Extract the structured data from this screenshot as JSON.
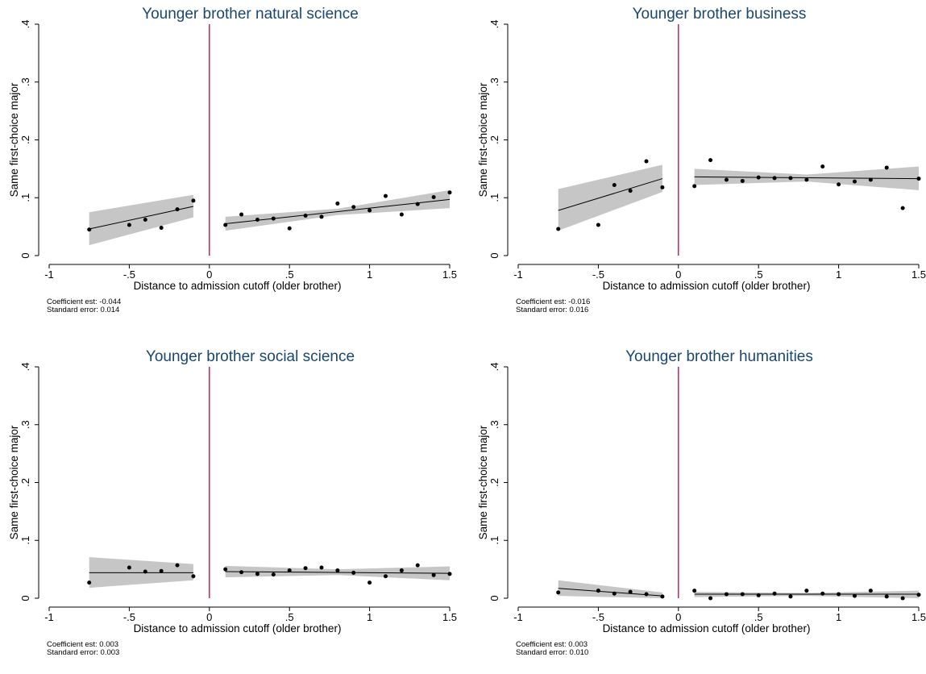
{
  "chart_data": [
    {
      "type": "scatter",
      "title": "Younger brother natural science",
      "xlabel": "Distance to admission cutoff (older brother)",
      "ylabel": "Same first-choice major",
      "xlim": [
        -1,
        1.5
      ],
      "ylim": [
        0,
        0.4
      ],
      "x_ticks": [
        -1,
        -0.5,
        0,
        0.5,
        1,
        1.5
      ],
      "x_tick_labels": [
        "-1",
        "-.5",
        "0",
        ".5",
        "1",
        "1.5"
      ],
      "y_ticks": [
        0,
        0.1,
        0.2,
        0.3,
        0.4
      ],
      "y_tick_labels": [
        "0",
        ".1",
        ".2",
        ".3",
        ".4"
      ],
      "cutoff": 0,
      "points": [
        [
          -0.75,
          0.045
        ],
        [
          -0.5,
          0.053
        ],
        [
          -0.4,
          0.062
        ],
        [
          -0.3,
          0.048
        ],
        [
          -0.2,
          0.08
        ],
        [
          -0.1,
          0.095
        ],
        [
          0.1,
          0.053
        ],
        [
          0.2,
          0.071
        ],
        [
          0.3,
          0.062
        ],
        [
          0.4,
          0.064
        ],
        [
          0.5,
          0.047
        ],
        [
          0.6,
          0.069
        ],
        [
          0.7,
          0.067
        ],
        [
          0.8,
          0.09
        ],
        [
          0.9,
          0.084
        ],
        [
          1.0,
          0.078
        ],
        [
          1.1,
          0.103
        ],
        [
          1.2,
          0.071
        ],
        [
          1.3,
          0.089
        ],
        [
          1.4,
          0.101
        ],
        [
          1.5,
          0.109
        ]
      ],
      "fit_left": {
        "x": [
          -0.75,
          -0.1
        ],
        "y": [
          0.046,
          0.085
        ]
      },
      "ci_left": {
        "x": [
          -0.75,
          -0.1
        ],
        "lower": [
          0.018,
          0.066
        ],
        "upper": [
          0.075,
          0.105
        ]
      },
      "fit_right": {
        "x": [
          0.1,
          1.5
        ],
        "y": [
          0.055,
          0.097
        ]
      },
      "ci_right": {
        "x": [
          0.1,
          0.8,
          1.5
        ],
        "lower": [
          0.043,
          0.07,
          0.082
        ],
        "upper": [
          0.067,
          0.081,
          0.113
        ]
      },
      "notes": [
        "Coefficient est: -0.044",
        "Standard error: 0.014"
      ]
    },
    {
      "type": "scatter",
      "title": "Younger brother business",
      "xlabel": "Distance to admission cutoff (older brother)",
      "ylabel": "Same first-choice major",
      "xlim": [
        -1,
        1.5
      ],
      "ylim": [
        0,
        0.4
      ],
      "x_ticks": [
        -1,
        -0.5,
        0,
        0.5,
        1,
        1.5
      ],
      "x_tick_labels": [
        "-1",
        "-.5",
        "0",
        ".5",
        "1",
        "1.5"
      ],
      "y_ticks": [
        0,
        0.1,
        0.2,
        0.3,
        0.4
      ],
      "y_tick_labels": [
        "0",
        ".1",
        ".2",
        ".3",
        ".4"
      ],
      "cutoff": 0,
      "points": [
        [
          -0.75,
          0.046
        ],
        [
          -0.5,
          0.053
        ],
        [
          -0.4,
          0.122
        ],
        [
          -0.3,
          0.112
        ],
        [
          -0.2,
          0.163
        ],
        [
          -0.1,
          0.118
        ],
        [
          0.1,
          0.12
        ],
        [
          0.2,
          0.165
        ],
        [
          0.3,
          0.131
        ],
        [
          0.4,
          0.129
        ],
        [
          0.5,
          0.135
        ],
        [
          0.6,
          0.134
        ],
        [
          0.7,
          0.134
        ],
        [
          0.8,
          0.131
        ],
        [
          0.9,
          0.154
        ],
        [
          1.0,
          0.123
        ],
        [
          1.1,
          0.128
        ],
        [
          1.2,
          0.131
        ],
        [
          1.3,
          0.152
        ],
        [
          1.4,
          0.082
        ],
        [
          1.5,
          0.133
        ]
      ],
      "fit_left": {
        "x": [
          -0.75,
          -0.1
        ],
        "y": [
          0.078,
          0.133
        ]
      },
      "ci_left": {
        "x": [
          -0.75,
          -0.1
        ],
        "lower": [
          0.043,
          0.11
        ],
        "upper": [
          0.115,
          0.157
        ]
      },
      "fit_right": {
        "x": [
          0.1,
          1.5
        ],
        "y": [
          0.136,
          0.133
        ]
      },
      "ci_right": {
        "x": [
          0.1,
          0.8,
          1.5
        ],
        "lower": [
          0.122,
          0.128,
          0.113
        ],
        "upper": [
          0.15,
          0.14,
          0.154
        ]
      },
      "notes": [
        "Coefficient est: -0.016",
        "Standard error: 0.016"
      ]
    },
    {
      "type": "scatter",
      "title": "Younger brother social science",
      "xlabel": "Distance to admission cutoff (older brother)",
      "ylabel": "Same first-choice major",
      "xlim": [
        -1,
        1.5
      ],
      "ylim": [
        0,
        0.4
      ],
      "x_ticks": [
        -1,
        -0.5,
        0,
        0.5,
        1,
        1.5
      ],
      "x_tick_labels": [
        "-1",
        "-.5",
        "0",
        ".5",
        "1",
        "1.5"
      ],
      "y_ticks": [
        0,
        0.1,
        0.2,
        0.3,
        0.4
      ],
      "y_tick_labels": [
        "0",
        ".1",
        ".2",
        ".3",
        ".4"
      ],
      "cutoff": 0,
      "points": [
        [
          -0.75,
          0.027
        ],
        [
          -0.5,
          0.053
        ],
        [
          -0.4,
          0.046
        ],
        [
          -0.3,
          0.047
        ],
        [
          -0.2,
          0.057
        ],
        [
          -0.1,
          0.038
        ],
        [
          0.1,
          0.05
        ],
        [
          0.2,
          0.045
        ],
        [
          0.3,
          0.042
        ],
        [
          0.4,
          0.041
        ],
        [
          0.5,
          0.048
        ],
        [
          0.6,
          0.052
        ],
        [
          0.7,
          0.053
        ],
        [
          0.8,
          0.048
        ],
        [
          0.9,
          0.044
        ],
        [
          1.0,
          0.027
        ],
        [
          1.1,
          0.038
        ],
        [
          1.2,
          0.048
        ],
        [
          1.3,
          0.057
        ],
        [
          1.4,
          0.04
        ],
        [
          1.5,
          0.042
        ]
      ],
      "fit_left": {
        "x": [
          -0.75,
          -0.1
        ],
        "y": [
          0.044,
          0.044
        ]
      },
      "ci_left": {
        "x": [
          -0.75,
          -0.1
        ],
        "lower": [
          0.018,
          0.031
        ],
        "upper": [
          0.071,
          0.059
        ]
      },
      "fit_right": {
        "x": [
          0.1,
          1.5
        ],
        "y": [
          0.046,
          0.043
        ]
      },
      "ci_right": {
        "x": [
          0.1,
          0.8,
          1.5
        ],
        "lower": [
          0.036,
          0.04,
          0.031
        ],
        "upper": [
          0.056,
          0.05,
          0.055
        ]
      },
      "notes": [
        "Coefficient est: 0.003",
        "Standard error: 0.003"
      ]
    },
    {
      "type": "scatter",
      "title": "Younger brother humanities",
      "xlabel": "Distance to admission cutoff (older brother)",
      "ylabel": "Same first-choice major",
      "xlim": [
        -1,
        1.5
      ],
      "ylim": [
        0,
        0.4
      ],
      "x_ticks": [
        -1,
        -0.5,
        0,
        0.5,
        1,
        1.5
      ],
      "x_tick_labels": [
        "-1",
        "-.5",
        "0",
        ".5",
        "1",
        "1.5"
      ],
      "y_ticks": [
        0,
        0.1,
        0.2,
        0.3,
        0.4
      ],
      "y_tick_labels": [
        "0",
        ".1",
        ".2",
        ".3",
        ".4"
      ],
      "cutoff": 0,
      "points": [
        [
          -0.75,
          0.01
        ],
        [
          -0.5,
          0.013
        ],
        [
          -0.4,
          0.008
        ],
        [
          -0.3,
          0.011
        ],
        [
          -0.2,
          0.007
        ],
        [
          -0.1,
          0.003
        ],
        [
          0.1,
          0.013
        ],
        [
          0.2,
          0.0
        ],
        [
          0.3,
          0.007
        ],
        [
          0.4,
          0.007
        ],
        [
          0.5,
          0.005
        ],
        [
          0.6,
          0.008
        ],
        [
          0.7,
          0.003
        ],
        [
          0.8,
          0.013
        ],
        [
          0.9,
          0.008
        ],
        [
          1.0,
          0.007
        ],
        [
          1.1,
          0.004
        ],
        [
          1.2,
          0.013
        ],
        [
          1.3,
          0.003
        ],
        [
          1.4,
          0.0
        ],
        [
          1.5,
          0.006
        ]
      ],
      "fit_left": {
        "x": [
          -0.75,
          -0.1
        ],
        "y": [
          0.017,
          0.004
        ]
      },
      "ci_left": {
        "x": [
          -0.75,
          -0.1
        ],
        "lower": [
          0.004,
          0.0
        ],
        "upper": [
          0.031,
          0.01
        ]
      },
      "fit_right": {
        "x": [
          0.1,
          1.5
        ],
        "y": [
          0.007,
          0.007
        ]
      },
      "ci_right": {
        "x": [
          0.1,
          0.8,
          1.5
        ],
        "lower": [
          0.002,
          0.004,
          0.0
        ],
        "upper": [
          0.011,
          0.009,
          0.013
        ]
      },
      "notes": [
        "Coefficient est: 0.003",
        "Standard error: 0.010"
      ]
    }
  ],
  "colors": {
    "title": "#1a476f",
    "cutoff_line": "#c10534",
    "ci_band": "#c6c6c6",
    "points": "#000000",
    "fit_line": "#000000",
    "axis": "#000000"
  }
}
